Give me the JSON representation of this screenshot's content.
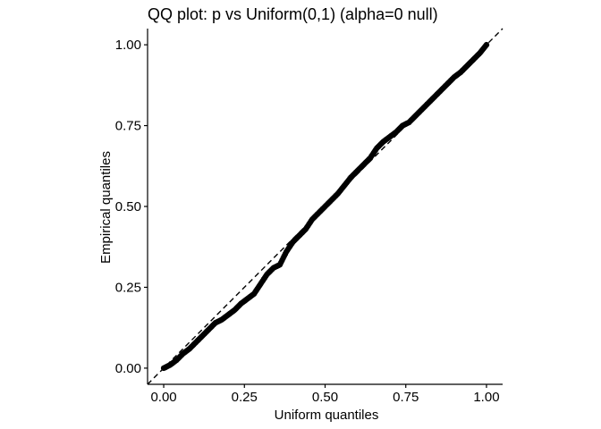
{
  "chart_data": {
    "type": "scatter",
    "title": "QQ plot: p vs Uniform(0,1) (alpha=0 null)",
    "xlabel": "Uniform quantiles",
    "ylabel": "Empirical quantiles",
    "xlim": [
      -0.05,
      1.05
    ],
    "ylim": [
      -0.05,
      1.05
    ],
    "x_ticks": [
      0.0,
      0.25,
      0.5,
      0.75,
      1.0
    ],
    "x_tick_labels": [
      "0.00",
      "0.25",
      "0.50",
      "0.75",
      "1.00"
    ],
    "y_ticks": [
      0.0,
      0.25,
      0.5,
      0.75,
      1.0
    ],
    "y_tick_labels": [
      "0.00",
      "0.25",
      "0.50",
      "0.75",
      "1.00"
    ],
    "grid": false,
    "legend": "none",
    "reference_line": {
      "slope": 1,
      "intercept": 0,
      "style": "dashed",
      "color": "#000000"
    },
    "series": [
      {
        "color": "#000000",
        "x": [
          0.0,
          0.02,
          0.04,
          0.06,
          0.08,
          0.1,
          0.12,
          0.14,
          0.16,
          0.18,
          0.2,
          0.22,
          0.24,
          0.26,
          0.28,
          0.3,
          0.32,
          0.34,
          0.36,
          0.38,
          0.4,
          0.42,
          0.44,
          0.46,
          0.48,
          0.5,
          0.52,
          0.54,
          0.56,
          0.58,
          0.6,
          0.62,
          0.64,
          0.66,
          0.68,
          0.7,
          0.72,
          0.74,
          0.76,
          0.78,
          0.8,
          0.82,
          0.84,
          0.86,
          0.88,
          0.9,
          0.92,
          0.94,
          0.96,
          0.98,
          1.0
        ],
        "y": [
          0.0,
          0.01,
          0.025,
          0.045,
          0.06,
          0.08,
          0.1,
          0.12,
          0.14,
          0.15,
          0.165,
          0.18,
          0.2,
          0.215,
          0.23,
          0.26,
          0.29,
          0.31,
          0.32,
          0.36,
          0.39,
          0.41,
          0.43,
          0.46,
          0.48,
          0.5,
          0.52,
          0.54,
          0.565,
          0.59,
          0.61,
          0.63,
          0.65,
          0.68,
          0.7,
          0.715,
          0.73,
          0.75,
          0.76,
          0.78,
          0.8,
          0.82,
          0.84,
          0.86,
          0.88,
          0.9,
          0.915,
          0.935,
          0.955,
          0.975,
          1.0
        ]
      }
    ]
  }
}
